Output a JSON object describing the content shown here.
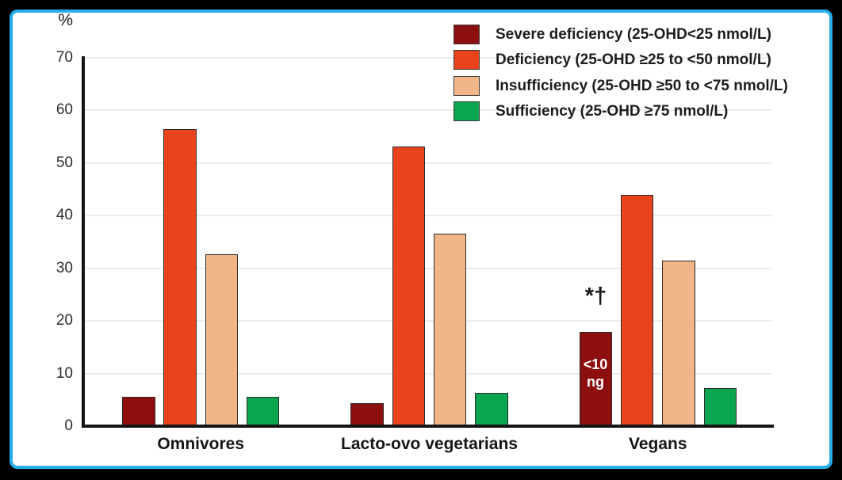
{
  "figure": {
    "unit_label": "%",
    "significance_annotation": "*†",
    "inner_bar_label": {
      "line1": "<10",
      "line2": "ng"
    }
  },
  "colors": {
    "severe_deficiency": "#8D0E0E",
    "deficiency": "#E9431B",
    "insufficiency": "#F1B588",
    "sufficiency": "#0BA64F",
    "frame_border": "#27AEE8",
    "outer_background": "#000000",
    "panel_background": "#FFFFFF",
    "gridline": "#ECECEC",
    "axis": "#141414",
    "inner_label_text": "#FFFFFF"
  },
  "chart_data": {
    "type": "bar",
    "title": "",
    "xlabel": "",
    "ylabel": "%",
    "ylim": [
      0,
      70
    ],
    "yticks": [
      0,
      10,
      20,
      30,
      40,
      50,
      60,
      70
    ],
    "grid": true,
    "legend_position": "top-right",
    "categories": [
      "Omnivores",
      "Lacto-ovo vegetarians",
      "Vegans"
    ],
    "series": [
      {
        "name": "Severe deficiency (25-OHD<25 nmol/L)",
        "color": "#8D0E0E",
        "values": [
          5.5,
          4.3,
          17.9
        ]
      },
      {
        "name": "Deficiency (25-OHD ≥25 to <50 nmol/L)",
        "color": "#E9431B",
        "values": [
          56.4,
          53.1,
          43.9
        ]
      },
      {
        "name": "Insufficiency (25-OHD ≥50 to <75 nmol/L)",
        "color": "#F1B588",
        "values": [
          32.6,
          36.6,
          31.4
        ]
      },
      {
        "name": "Sufficiency (25-OHD ≥75 nmol/L)",
        "color": "#0BA64F",
        "values": [
          5.5,
          6.3,
          7.2
        ]
      }
    ],
    "annotations": [
      {
        "text": "*†",
        "target": "Vegans severe-deficiency bar",
        "position": "above-bar"
      },
      {
        "text": "<10 ng",
        "target": "Vegans severe-deficiency bar",
        "position": "inside-bar"
      }
    ]
  }
}
